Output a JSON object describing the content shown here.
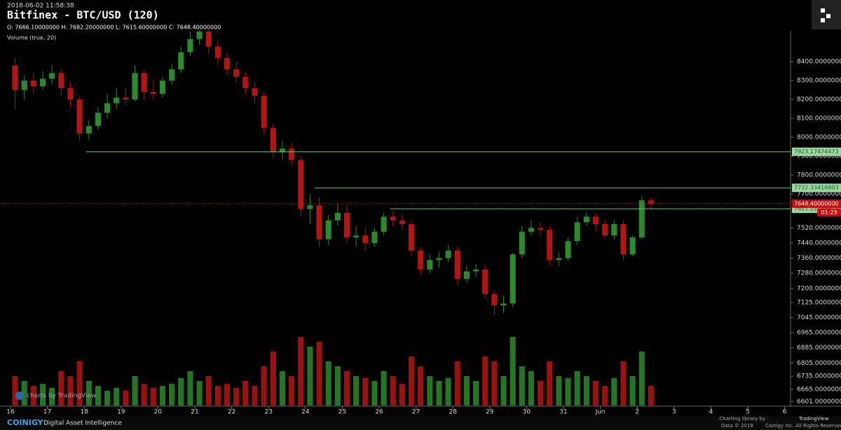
{
  "chart_data": {
    "type": "candlestick",
    "timestamp": "2018-06-02 11:58:38",
    "title": "Bitfinex - BTC/USD (120)",
    "ohlc_legend": "O: 7666.10000000 H: 7682.20000000 L: 7615.60000000 C: 7648.40000000",
    "volume_label": "Volume (true, 20)",
    "watermark": "charts by TradingView",
    "up_color": "#2b8a2b",
    "down_color": "#b31515",
    "categories": [
      "16",
      "17",
      "18",
      "19",
      "20",
      "21",
      "22",
      "23",
      "24",
      "25",
      "26",
      "27",
      "28",
      "29",
      "30",
      "31",
      "Jun",
      "2",
      "3",
      "4",
      "5",
      "6"
    ],
    "candles": [
      [
        8380,
        8420,
        8150,
        8250
      ],
      [
        8250,
        8330,
        8200,
        8300
      ],
      [
        8300,
        8340,
        8230,
        8270
      ],
      [
        8270,
        8350,
        8250,
        8310
      ],
      [
        8310,
        8380,
        8280,
        8340
      ],
      [
        8340,
        8360,
        8220,
        8260
      ],
      [
        8260,
        8290,
        8160,
        8200
      ],
      [
        8200,
        8220,
        7980,
        8020
      ],
      [
        8020,
        8090,
        7990,
        8060
      ],
      [
        8060,
        8160,
        8040,
        8130
      ],
      [
        8130,
        8230,
        8100,
        8180
      ],
      [
        8180,
        8260,
        8150,
        8210
      ],
      [
        8210,
        8260,
        8170,
        8200
      ],
      [
        8200,
        8380,
        8190,
        8340
      ],
      [
        8340,
        8360,
        8200,
        8240
      ],
      [
        8240,
        8300,
        8200,
        8230
      ],
      [
        8230,
        8320,
        8210,
        8300
      ],
      [
        8300,
        8390,
        8280,
        8360
      ],
      [
        8360,
        8480,
        8340,
        8450
      ],
      [
        8450,
        8560,
        8430,
        8520
      ],
      [
        8520,
        8600,
        8490,
        8560
      ],
      [
        8560,
        8580,
        8440,
        8480
      ],
      [
        8480,
        8510,
        8380,
        8420
      ],
      [
        8420,
        8450,
        8330,
        8360
      ],
      [
        8360,
        8400,
        8290,
        8320
      ],
      [
        8320,
        8340,
        8230,
        8260
      ],
      [
        8260,
        8290,
        8180,
        8220
      ],
      [
        8220,
        8240,
        8020,
        8050
      ],
      [
        8050,
        8070,
        7890,
        7920
      ],
      [
        7920,
        7980,
        7880,
        7940
      ],
      [
        7940,
        7970,
        7850,
        7880
      ],
      [
        7880,
        7900,
        7580,
        7620
      ],
      [
        7620,
        7700,
        7540,
        7640
      ],
      [
        7640,
        7680,
        7420,
        7460
      ],
      [
        7460,
        7590,
        7430,
        7560
      ],
      [
        7560,
        7650,
        7530,
        7600
      ],
      [
        7600,
        7640,
        7440,
        7470
      ],
      [
        7470,
        7530,
        7420,
        7480
      ],
      [
        7480,
        7520,
        7400,
        7440
      ],
      [
        7440,
        7520,
        7420,
        7500
      ],
      [
        7500,
        7600,
        7480,
        7580
      ],
      [
        7580,
        7610,
        7530,
        7560
      ],
      [
        7560,
        7590,
        7510,
        7540
      ],
      [
        7540,
        7560,
        7370,
        7400
      ],
      [
        7400,
        7420,
        7270,
        7300
      ],
      [
        7300,
        7380,
        7280,
        7350
      ],
      [
        7350,
        7390,
        7310,
        7360
      ],
      [
        7360,
        7430,
        7340,
        7400
      ],
      [
        7400,
        7420,
        7220,
        7250
      ],
      [
        7250,
        7320,
        7230,
        7290
      ],
      [
        7290,
        7330,
        7260,
        7300
      ],
      [
        7300,
        7320,
        7150,
        7170
      ],
      [
        7170,
        7190,
        7060,
        7110
      ],
      [
        7110,
        7160,
        7070,
        7120
      ],
      [
        7120,
        7390,
        7100,
        7380
      ],
      [
        7380,
        7530,
        7360,
        7500
      ],
      [
        7500,
        7560,
        7480,
        7520
      ],
      [
        7520,
        7550,
        7480,
        7510
      ],
      [
        7510,
        7530,
        7320,
        7350
      ],
      [
        7350,
        7390,
        7320,
        7360
      ],
      [
        7360,
        7470,
        7350,
        7450
      ],
      [
        7450,
        7580,
        7430,
        7550
      ],
      [
        7550,
        7600,
        7530,
        7580
      ],
      [
        7580,
        7600,
        7500,
        7540
      ],
      [
        7540,
        7560,
        7460,
        7480
      ],
      [
        7480,
        7560,
        7460,
        7540
      ],
      [
        7540,
        7560,
        7350,
        7380
      ],
      [
        7380,
        7480,
        7370,
        7470
      ],
      [
        7470,
        7690,
        7460,
        7666.1
      ],
      [
        7666.1,
        7682.2,
        7615.6,
        7648.4
      ]
    ],
    "volume": [
      30,
      25,
      20,
      22,
      18,
      35,
      30,
      45,
      25,
      20,
      15,
      18,
      15,
      30,
      22,
      18,
      20,
      22,
      28,
      35,
      25,
      30,
      20,
      22,
      18,
      25,
      20,
      40,
      55,
      35,
      30,
      70,
      60,
      65,
      45,
      40,
      35,
      30,
      28,
      25,
      35,
      30,
      22,
      50,
      40,
      30,
      25,
      28,
      45,
      30,
      25,
      50,
      45,
      30,
      70,
      40,
      35,
      25,
      45,
      30,
      28,
      35,
      30,
      25,
      20,
      28,
      45,
      30,
      55,
      20
    ],
    "ylim": [
      6580,
      8560
    ],
    "y2lim": [
      0,
      100
    ],
    "yticks": [
      {
        "value": 8400,
        "label": "8400.00000000"
      },
      {
        "value": 8300,
        "label": "8300.00000000"
      },
      {
        "value": 8200,
        "label": "8200.00000000"
      },
      {
        "value": 8100,
        "label": "8100.00000000"
      },
      {
        "value": 8000,
        "label": "8000.00000000"
      },
      {
        "value": 7900,
        "label": "7900.00000000"
      },
      {
        "value": 7800,
        "label": "7800.00000000"
      },
      {
        "value": 7700,
        "label": "7700.00000000"
      },
      {
        "value": 7520,
        "label": "7520.00000000"
      },
      {
        "value": 7440,
        "label": "7440.00000000"
      },
      {
        "value": 7360,
        "label": "7360.00000000"
      },
      {
        "value": 7280,
        "label": "7280.00000000"
      },
      {
        "value": 7200,
        "label": "7200.00000000"
      },
      {
        "value": 7125,
        "label": "7125.00000000"
      },
      {
        "value": 7045,
        "label": "7045.00000000"
      },
      {
        "value": 6965,
        "label": "6965.00000000"
      },
      {
        "value": 6885,
        "label": "6885.00000000"
      },
      {
        "value": 6805,
        "label": "6805.00000000"
      },
      {
        "value": 6735,
        "label": "6735.00000000"
      },
      {
        "value": 6665,
        "label": "6665.00000000"
      },
      {
        "value": 6601,
        "label": "6601.00000000"
      }
    ],
    "levels": [
      {
        "value": 7923.17474473,
        "label": "7923.17474473"
      },
      {
        "value": 7732.33416803,
        "label": "7732.33416803"
      },
      {
        "value": 7621.22586818,
        "label": "7621.22586818"
      }
    ],
    "last_price": {
      "value": 7648.4,
      "label": "7648.40000000",
      "countdown": "01:23"
    },
    "footer": {
      "brand": "COINIGY",
      "tagline": "Digital Asset Intelligence",
      "credit": "Charting library by",
      "credit_brand": "TradingView",
      "copyright": "Data © 2018",
      "rights": "Coinigy Inc. All Rights Reserved"
    }
  }
}
